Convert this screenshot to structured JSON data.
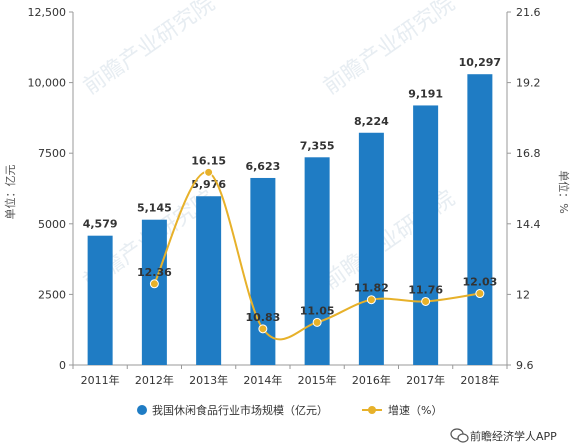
{
  "chart_data": {
    "type": "bar",
    "categories": [
      "2011年",
      "2012年",
      "2013年",
      "2014年",
      "2015年",
      "2016年",
      "2017年",
      "2018年"
    ],
    "series": [
      {
        "name": "我国休闲食品行业市场规模（亿元）",
        "type": "bar",
        "axis": "left",
        "values": [
          4579,
          5145,
          5976,
          6623,
          7355,
          8224,
          9191,
          10297
        ],
        "labels": [
          "4,579",
          "5,145",
          "5,976",
          "6,623",
          "7,355",
          "8,224",
          "9,191",
          "10,297"
        ]
      },
      {
        "name": "增速（%）",
        "type": "line",
        "axis": "right",
        "values": [
          null,
          12.36,
          16.15,
          10.83,
          11.05,
          11.82,
          11.76,
          12.03
        ],
        "labels": [
          "",
          "12.36",
          "16.15",
          "10.83",
          "11.05",
          "11.82",
          "11.76",
          "12.03"
        ]
      }
    ],
    "yleft": {
      "label": "单位：亿元",
      "ylim": [
        0,
        12500
      ],
      "ticks": [
        0,
        2500,
        5000,
        7500,
        10000,
        12500
      ],
      "tick_labels": [
        "0",
        "2500",
        "5000",
        "7500",
        "10,000",
        "12,500"
      ]
    },
    "yright": {
      "label": "单位：%",
      "ylim": [
        9.6,
        21.6
      ],
      "ticks": [
        9.6,
        12,
        14.4,
        16.8,
        19.2,
        21.6
      ],
      "tick_labels": [
        "9.6",
        "12",
        "14.4",
        "16.8",
        "19.2",
        "21.6"
      ]
    },
    "grid": false,
    "legend": "bottom"
  },
  "colors": {
    "bar": "#1f7cc4",
    "line": "#e7b12a",
    "marker": "#e7b12a",
    "axis": "#999999",
    "watermark": "#c9d6e2"
  },
  "watermark": {
    "text": "前瞻产业研究院",
    "logo": "前瞻产业研究院"
  },
  "footer": {
    "icon": "wechat-icon",
    "text": "前瞻经济学人APP"
  }
}
